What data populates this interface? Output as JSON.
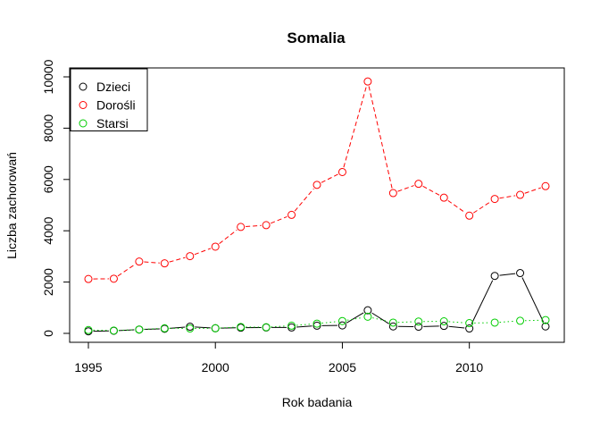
{
  "chart_data": {
    "type": "line",
    "title": "Somalia",
    "xlabel": "Rok badania",
    "ylabel": "Liczba zachorowań",
    "xlim": [
      1995,
      2013
    ],
    "ylim": [
      0,
      10000
    ],
    "x_ticks": [
      1995,
      2000,
      2005,
      2010
    ],
    "y_ticks": [
      0,
      2000,
      4000,
      6000,
      8000,
      10000
    ],
    "grid": false,
    "legend_position": "top-left",
    "x": [
      1995,
      1996,
      1997,
      1998,
      1999,
      2000,
      2001,
      2002,
      2003,
      2004,
      2005,
      2006,
      2007,
      2008,
      2009,
      2010,
      2011,
      2012,
      2013
    ],
    "series": [
      {
        "name": "Dzieci",
        "color": "#000000",
        "line_style": "solid",
        "values": [
          80,
          100,
          150,
          180,
          260,
          200,
          220,
          230,
          230,
          300,
          310,
          900,
          270,
          260,
          290,
          190,
          2240,
          2350,
          270
        ]
      },
      {
        "name": "Dorośli",
        "color": "#ff0000",
        "line_style": "dashed",
        "values": [
          2120,
          2130,
          2800,
          2730,
          3010,
          3380,
          4150,
          4220,
          4620,
          5790,
          6290,
          9820,
          5470,
          5830,
          5290,
          4590,
          5240,
          5400,
          5740
        ]
      },
      {
        "name": "Starsi",
        "color": "#00cd00",
        "line_style": "dotted",
        "values": [
          130,
          110,
          150,
          200,
          190,
          200,
          250,
          240,
          300,
          380,
          480,
          650,
          420,
          460,
          470,
          400,
          420,
          490,
          520
        ]
      }
    ]
  }
}
